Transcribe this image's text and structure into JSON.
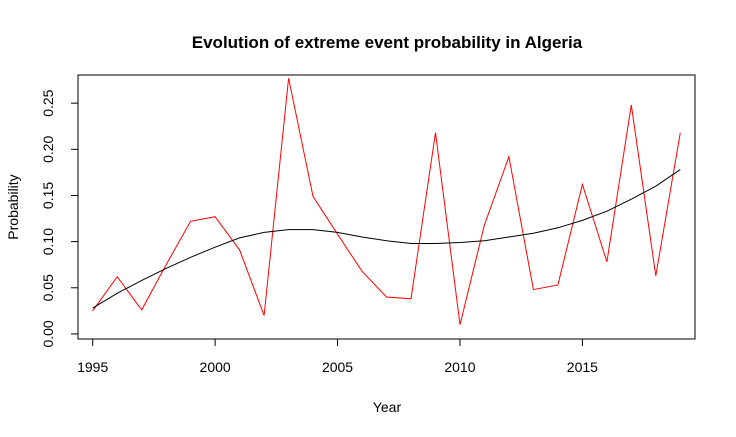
{
  "chart_data": {
    "type": "line",
    "title": "Evolution of extreme event probability in Algeria",
    "xlabel": "Year",
    "ylabel": "Probability",
    "xlim": [
      1994.4,
      2019.6
    ],
    "ylim": [
      -0.0055,
      0.2805
    ],
    "x_ticks": [
      1995,
      2000,
      2005,
      2010,
      2015
    ],
    "y_ticks": [
      "0.00",
      "0.05",
      "0.10",
      "0.15",
      "0.20",
      "0.25"
    ],
    "grid": false,
    "series": [
      {
        "color": "#ff0000",
        "x": [
          1995,
          1996,
          1997,
          1998,
          1999,
          2000,
          2001,
          2002,
          2003,
          2004,
          2005,
          2006,
          2007,
          2008,
          2009,
          2010,
          2011,
          2012,
          2013,
          2014,
          2015,
          2016,
          2017,
          2018,
          2019
        ],
        "y": [
          0.025,
          0.062,
          0.026,
          0.075,
          0.122,
          0.127,
          0.091,
          0.02,
          0.277,
          0.149,
          0.108,
          0.068,
          0.04,
          0.038,
          0.218,
          0.01,
          0.118,
          0.192,
          0.048,
          0.053,
          0.162,
          0.078,
          0.248,
          0.063,
          0.218
        ]
      },
      {
        "color": "#000000",
        "x": [
          1995,
          1996,
          1997,
          1998,
          1999,
          2000,
          2001,
          2002,
          2003,
          2004,
          2005,
          2006,
          2007,
          2008,
          2009,
          2010,
          2011,
          2012,
          2013,
          2014,
          2015,
          2016,
          2017,
          2018,
          2019
        ],
        "y": [
          0.028,
          0.044,
          0.058,
          0.071,
          0.083,
          0.094,
          0.104,
          0.11,
          0.113,
          0.113,
          0.11,
          0.105,
          0.101,
          0.098,
          0.098,
          0.099,
          0.101,
          0.105,
          0.109,
          0.115,
          0.123,
          0.133,
          0.146,
          0.16,
          0.178
        ]
      }
    ]
  }
}
